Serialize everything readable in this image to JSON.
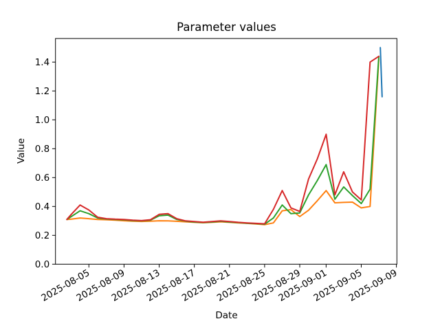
{
  "chart_data": {
    "type": "line",
    "title": "Parameter values",
    "xlabel": "Date",
    "ylabel": "Value",
    "grid": false,
    "legend": null,
    "ylim": [
      0,
      1.5633
    ],
    "xlim": [
      "2025-08-01T04:45",
      "2025-09-09T01:20"
    ],
    "y_ticks": [
      0,
      0.2,
      0.4,
      0.6,
      0.8,
      1.0,
      1.2,
      1.4
    ],
    "y_tick_labels": [
      "0.0",
      "0.2",
      "0.4",
      "0.6",
      "0.8",
      "1.0",
      "1.2",
      "1.4"
    ],
    "x_tick_labels": [
      "2025-08-05",
      "2025-08-09",
      "2025-08-13",
      "2025-08-17",
      "2025-08-21",
      "2025-08-25",
      "2025-08-29",
      "2025-09-01",
      "2025-09-05",
      "2025-09-09"
    ],
    "series": [
      {
        "id": "blue",
        "color": "#1f77b4",
        "points": [
          [
            "2025-09-07T04:00",
            1.5
          ],
          [
            "2025-09-07T09:00",
            1.16
          ]
        ]
      },
      {
        "id": "orange",
        "color": "#ff7f0e",
        "points": [
          [
            "2025-08-02T12:00",
            0.31
          ],
          [
            "2025-08-03",
            0.312
          ],
          [
            "2025-08-04",
            0.32
          ],
          [
            "2025-08-05",
            0.315
          ],
          [
            "2025-08-06",
            0.31
          ],
          [
            "2025-08-07",
            0.308
          ],
          [
            "2025-08-08",
            0.305
          ],
          [
            "2025-08-09",
            0.301
          ],
          [
            "2025-08-10",
            0.298
          ],
          [
            "2025-08-11",
            0.296
          ],
          [
            "2025-08-12",
            0.298
          ],
          [
            "2025-08-13",
            0.301
          ],
          [
            "2025-08-14",
            0.3
          ],
          [
            "2025-08-15",
            0.297
          ],
          [
            "2025-08-16",
            0.294
          ],
          [
            "2025-08-17",
            0.29
          ],
          [
            "2025-08-18",
            0.287
          ],
          [
            "2025-08-19",
            0.29
          ],
          [
            "2025-08-20",
            0.294
          ],
          [
            "2025-08-21",
            0.29
          ],
          [
            "2025-08-22",
            0.286
          ],
          [
            "2025-08-23",
            0.283
          ],
          [
            "2025-08-24",
            0.279
          ],
          [
            "2025-08-25",
            0.274
          ],
          [
            "2025-08-26",
            0.286
          ],
          [
            "2025-08-27",
            0.37
          ],
          [
            "2025-08-28",
            0.378
          ],
          [
            "2025-08-29",
            0.33
          ],
          [
            "2025-08-30",
            0.374
          ],
          [
            "2025-08-31",
            0.44
          ],
          [
            "2025-09-01",
            0.51
          ],
          [
            "2025-09-02",
            0.425
          ],
          [
            "2025-09-03",
            0.428
          ],
          [
            "2025-09-04",
            0.43
          ],
          [
            "2025-09-05",
            0.39
          ],
          [
            "2025-09-06",
            0.4
          ],
          [
            "2025-09-07",
            1.42
          ]
        ]
      },
      {
        "id": "green",
        "color": "#2ca02c",
        "points": [
          [
            "2025-08-02T12:00",
            0.31
          ],
          [
            "2025-08-03",
            0.33
          ],
          [
            "2025-08-04",
            0.37
          ],
          [
            "2025-08-05",
            0.35
          ],
          [
            "2025-08-06",
            0.32
          ],
          [
            "2025-08-07",
            0.313
          ],
          [
            "2025-08-08",
            0.31
          ],
          [
            "2025-08-09",
            0.307
          ],
          [
            "2025-08-10",
            0.302
          ],
          [
            "2025-08-11",
            0.3
          ],
          [
            "2025-08-12",
            0.305
          ],
          [
            "2025-08-13",
            0.335
          ],
          [
            "2025-08-14",
            0.34
          ],
          [
            "2025-08-15",
            0.31
          ],
          [
            "2025-08-16",
            0.298
          ],
          [
            "2025-08-17",
            0.292
          ],
          [
            "2025-08-18",
            0.289
          ],
          [
            "2025-08-19",
            0.292
          ],
          [
            "2025-08-20",
            0.297
          ],
          [
            "2025-08-21",
            0.292
          ],
          [
            "2025-08-22",
            0.288
          ],
          [
            "2025-08-23",
            0.284
          ],
          [
            "2025-08-24",
            0.281
          ],
          [
            "2025-08-25",
            0.277
          ],
          [
            "2025-08-26",
            0.32
          ],
          [
            "2025-08-27",
            0.41
          ],
          [
            "2025-08-28",
            0.35
          ],
          [
            "2025-08-29",
            0.355
          ],
          [
            "2025-08-30",
            0.48
          ],
          [
            "2025-08-31",
            0.58
          ],
          [
            "2025-09-01",
            0.69
          ],
          [
            "2025-09-02",
            0.45
          ],
          [
            "2025-09-03",
            0.535
          ],
          [
            "2025-09-04",
            0.475
          ],
          [
            "2025-09-05",
            0.42
          ],
          [
            "2025-09-06",
            0.52
          ],
          [
            "2025-09-07",
            1.44
          ]
        ]
      },
      {
        "id": "red",
        "color": "#d62728",
        "points": [
          [
            "2025-08-02T12:00",
            0.31
          ],
          [
            "2025-08-03",
            0.345
          ],
          [
            "2025-08-04",
            0.41
          ],
          [
            "2025-08-05",
            0.375
          ],
          [
            "2025-08-06",
            0.325
          ],
          [
            "2025-08-07",
            0.315
          ],
          [
            "2025-08-08",
            0.312
          ],
          [
            "2025-08-09",
            0.31
          ],
          [
            "2025-08-10",
            0.305
          ],
          [
            "2025-08-11",
            0.302
          ],
          [
            "2025-08-12",
            0.308
          ],
          [
            "2025-08-13",
            0.345
          ],
          [
            "2025-08-14",
            0.35
          ],
          [
            "2025-08-15",
            0.315
          ],
          [
            "2025-08-16",
            0.3
          ],
          [
            "2025-08-17",
            0.295
          ],
          [
            "2025-08-18",
            0.291
          ],
          [
            "2025-08-19",
            0.295
          ],
          [
            "2025-08-20",
            0.3
          ],
          [
            "2025-08-21",
            0.295
          ],
          [
            "2025-08-22",
            0.29
          ],
          [
            "2025-08-23",
            0.286
          ],
          [
            "2025-08-24",
            0.283
          ],
          [
            "2025-08-25",
            0.28
          ],
          [
            "2025-08-26",
            0.38
          ],
          [
            "2025-08-27",
            0.51
          ],
          [
            "2025-08-28",
            0.39
          ],
          [
            "2025-08-29",
            0.365
          ],
          [
            "2025-08-30",
            0.59
          ],
          [
            "2025-08-31",
            0.73
          ],
          [
            "2025-09-01",
            0.9
          ],
          [
            "2025-09-02",
            0.48
          ],
          [
            "2025-09-03",
            0.64
          ],
          [
            "2025-09-04",
            0.5
          ],
          [
            "2025-09-05",
            0.445
          ],
          [
            "2025-09-06",
            1.4
          ],
          [
            "2025-09-07",
            1.44
          ]
        ]
      }
    ]
  }
}
